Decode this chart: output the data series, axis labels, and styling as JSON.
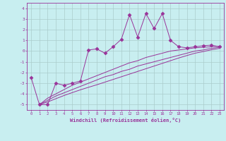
{
  "xlabel": "Windchill (Refroidissement éolien,°C)",
  "ylabel": "",
  "xlim": [
    -0.5,
    23.5
  ],
  "ylim": [
    -5.5,
    4.5
  ],
  "bg_color": "#c8eef0",
  "line_color": "#993399",
  "grid_color": "#aacccc",
  "series": {
    "measured": {
      "x": [
        0,
        1,
        2,
        3,
        4,
        5,
        6,
        7,
        8,
        9,
        10,
        11,
        12,
        13,
        14,
        15,
        16,
        17,
        18,
        19,
        20,
        21,
        22,
        23
      ],
      "y": [
        -2.5,
        -5.0,
        -5.0,
        -3.0,
        -3.2,
        -3.0,
        -2.8,
        0.1,
        0.2,
        -0.2,
        0.4,
        1.1,
        3.4,
        1.3,
        3.5,
        2.1,
        3.5,
        1.0,
        0.4,
        0.3,
        0.4,
        0.5,
        0.55,
        0.4
      ],
      "marker": "D",
      "markersize": 2.5
    },
    "trend1": {
      "x": [
        1,
        2,
        3,
        4,
        5,
        6,
        7,
        8,
        9,
        10,
        11,
        12,
        13,
        14,
        15,
        16,
        17,
        18,
        19,
        20,
        21,
        22,
        23
      ],
      "y": [
        -5.0,
        -4.4,
        -4.0,
        -3.6,
        -3.2,
        -2.9,
        -2.6,
        -2.3,
        -2.0,
        -1.7,
        -1.4,
        -1.1,
        -0.9,
        -0.6,
        -0.4,
        -0.2,
        0.0,
        0.1,
        0.2,
        0.3,
        0.35,
        0.4,
        0.45
      ]
    },
    "trend2": {
      "x": [
        1,
        2,
        3,
        4,
        5,
        6,
        7,
        8,
        9,
        10,
        11,
        12,
        13,
        14,
        15,
        16,
        17,
        18,
        19,
        20,
        21,
        22,
        23
      ],
      "y": [
        -5.0,
        -4.6,
        -4.2,
        -3.9,
        -3.6,
        -3.3,
        -3.0,
        -2.7,
        -2.4,
        -2.2,
        -1.9,
        -1.7,
        -1.4,
        -1.2,
        -1.0,
        -0.8,
        -0.6,
        -0.4,
        -0.2,
        0.0,
        0.1,
        0.25,
        0.35
      ]
    },
    "trend3": {
      "x": [
        1,
        2,
        3,
        4,
        5,
        6,
        7,
        8,
        9,
        10,
        11,
        12,
        13,
        14,
        15,
        16,
        17,
        18,
        19,
        20,
        21,
        22,
        23
      ],
      "y": [
        -5.0,
        -4.75,
        -4.45,
        -4.15,
        -3.88,
        -3.62,
        -3.38,
        -3.15,
        -2.9,
        -2.65,
        -2.4,
        -2.15,
        -1.9,
        -1.65,
        -1.4,
        -1.15,
        -0.9,
        -0.65,
        -0.42,
        -0.2,
        -0.05,
        0.12,
        0.25
      ]
    }
  },
  "yticks": [
    -5,
    -4,
    -3,
    -2,
    -1,
    0,
    1,
    2,
    3,
    4
  ],
  "xticks": [
    0,
    1,
    2,
    3,
    4,
    5,
    6,
    7,
    8,
    9,
    10,
    11,
    12,
    13,
    14,
    15,
    16,
    17,
    18,
    19,
    20,
    21,
    22,
    23
  ]
}
